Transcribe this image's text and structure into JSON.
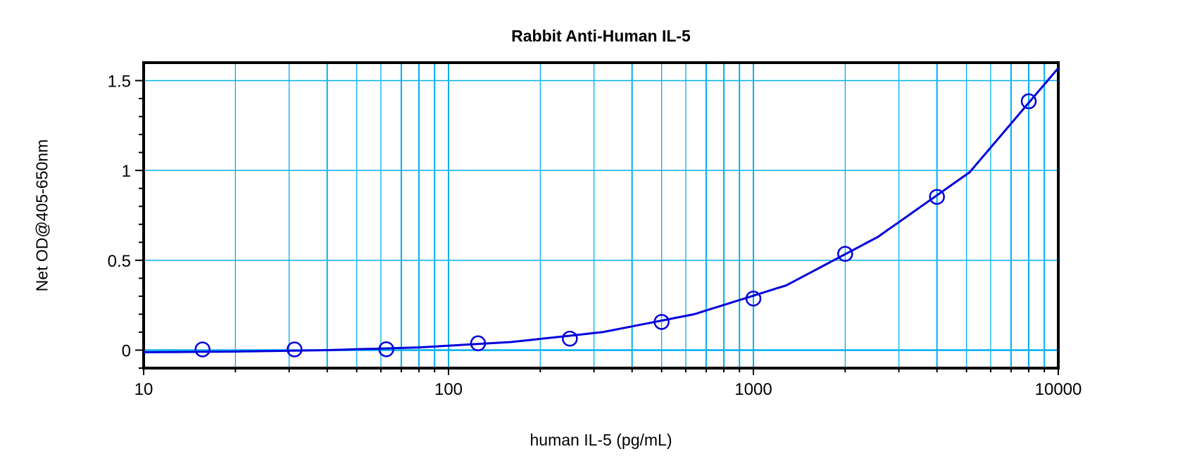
{
  "chart_data": {
    "type": "scatter",
    "title": "Rabbit Anti-Human IL-5",
    "xlabel": "human IL-5 (pg/mL)",
    "ylabel": "Net OD@405-650nm",
    "x_scale": "log",
    "xlim": [
      10,
      10000
    ],
    "ylim": [
      -0.1,
      1.6
    ],
    "x_ticks": [
      "10",
      "100",
      "1000",
      "10000"
    ],
    "y_ticks": [
      "0",
      "0.5",
      "1",
      "1.5"
    ],
    "grid": true,
    "colors": {
      "series": "#0000dd",
      "grid": "#00aeef",
      "axis": "#000000"
    },
    "points": {
      "x": [
        15.6,
        31.25,
        62.5,
        125,
        250,
        500,
        1000,
        2000,
        4000,
        8000
      ],
      "y": [
        0.004,
        0.004,
        0.005,
        0.038,
        0.064,
        0.157,
        0.287,
        0.536,
        0.853,
        1.385
      ]
    },
    "fit_curve": {
      "x": [
        10,
        20,
        40,
        80,
        160,
        320,
        640,
        1280,
        2560,
        5120,
        10000
      ],
      "y": [
        -0.012,
        -0.008,
        0.0,
        0.015,
        0.045,
        0.1,
        0.2,
        0.36,
        0.63,
        0.99,
        1.57
      ]
    }
  }
}
